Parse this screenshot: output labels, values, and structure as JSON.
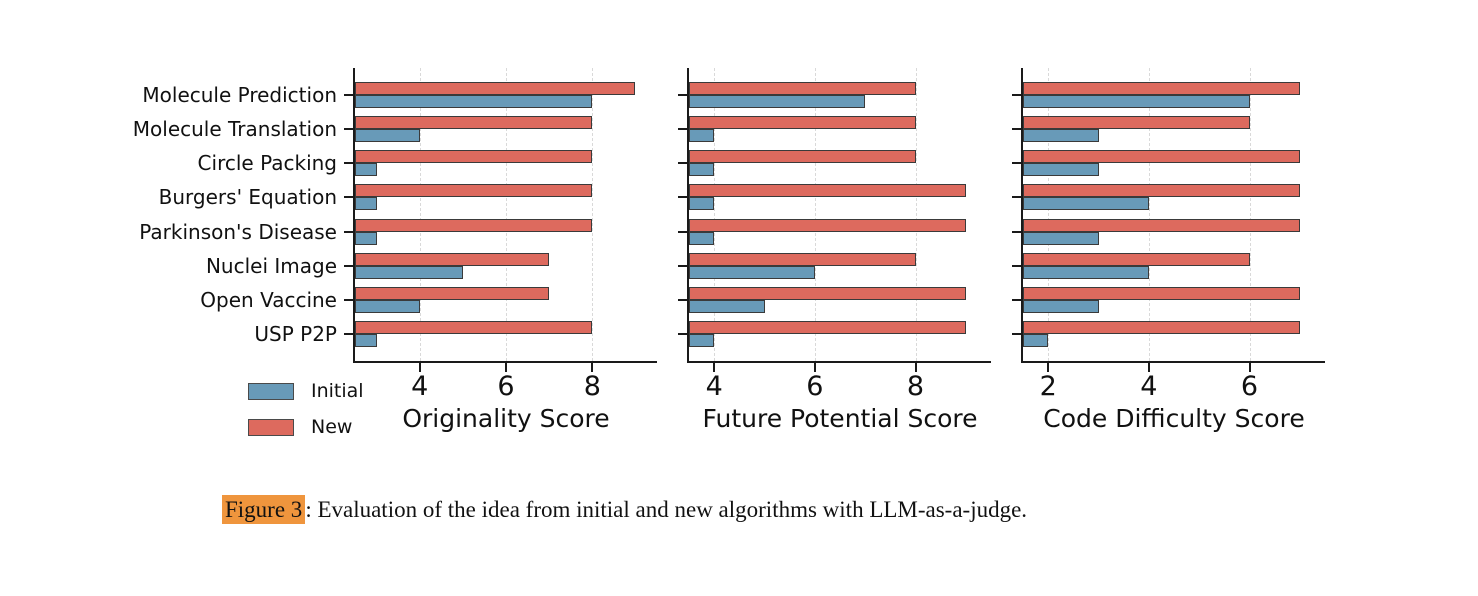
{
  "page": {
    "background": "#ffffff"
  },
  "colors": {
    "initial": "#689ab8",
    "new": "#dd6a5e",
    "bar_edge": "#3a3a3a",
    "spine": "#1a1a1a",
    "grid": "#d9d9d9",
    "caption_highlight": "#ef953d"
  },
  "legend": {
    "items": [
      {
        "label": "Initial",
        "color_key": "initial"
      },
      {
        "label": "New",
        "color_key": "new"
      }
    ]
  },
  "caption": {
    "tag": "Figure 3",
    "text": ": Evaluation of the idea from initial and new algorithms with LLM-as-a-judge."
  },
  "chart_data": [
    {
      "type": "bar",
      "orientation": "horizontal",
      "xlabel": "Originality Score",
      "xlim": [
        2.5,
        9.5
      ],
      "xticks": [
        4,
        6,
        8
      ],
      "grid": true,
      "legend_position": "lower left outside",
      "categories": [
        "Molecule Prediction",
        "Molecule Translation",
        "Circle Packing",
        "Burgers' Equation",
        "Parkinson's Disease",
        "Nuclei Image",
        "Open Vaccine",
        "USP P2P"
      ],
      "series": [
        {
          "name": "Initial",
          "color_key": "initial",
          "values": [
            8,
            4,
            3,
            3,
            3,
            5,
            4,
            3
          ]
        },
        {
          "name": "New",
          "color_key": "new",
          "values": [
            9,
            8,
            8,
            8,
            8,
            7,
            7,
            8
          ]
        }
      ]
    },
    {
      "type": "bar",
      "orientation": "horizontal",
      "xlabel": "Future Potential Score",
      "xlim": [
        3.5,
        9.5
      ],
      "xticks": [
        4,
        6,
        8
      ],
      "grid": true,
      "categories": [
        "Molecule Prediction",
        "Molecule Translation",
        "Circle Packing",
        "Burgers' Equation",
        "Parkinson's Disease",
        "Nuclei Image",
        "Open Vaccine",
        "USP P2P"
      ],
      "series": [
        {
          "name": "Initial",
          "color_key": "initial",
          "values": [
            7,
            4,
            4,
            4,
            4,
            6,
            5,
            4
          ]
        },
        {
          "name": "New",
          "color_key": "new",
          "values": [
            8,
            8,
            8,
            9,
            9,
            8,
            9,
            9
          ]
        }
      ]
    },
    {
      "type": "bar",
      "orientation": "horizontal",
      "xlabel": "Code Difficulty Score",
      "xlim": [
        1.5,
        7.5
      ],
      "xticks": [
        2,
        4,
        6
      ],
      "grid": true,
      "categories": [
        "Molecule Prediction",
        "Molecule Translation",
        "Circle Packing",
        "Burgers' Equation",
        "Parkinson's Disease",
        "Nuclei Image",
        "Open Vaccine",
        "USP P2P"
      ],
      "series": [
        {
          "name": "Initial",
          "color_key": "initial",
          "values": [
            6,
            3,
            3,
            4,
            3,
            4,
            3,
            2
          ]
        },
        {
          "name": "New",
          "color_key": "new",
          "values": [
            7,
            6,
            7,
            7,
            7,
            6,
            7,
            7
          ]
        }
      ]
    }
  ]
}
